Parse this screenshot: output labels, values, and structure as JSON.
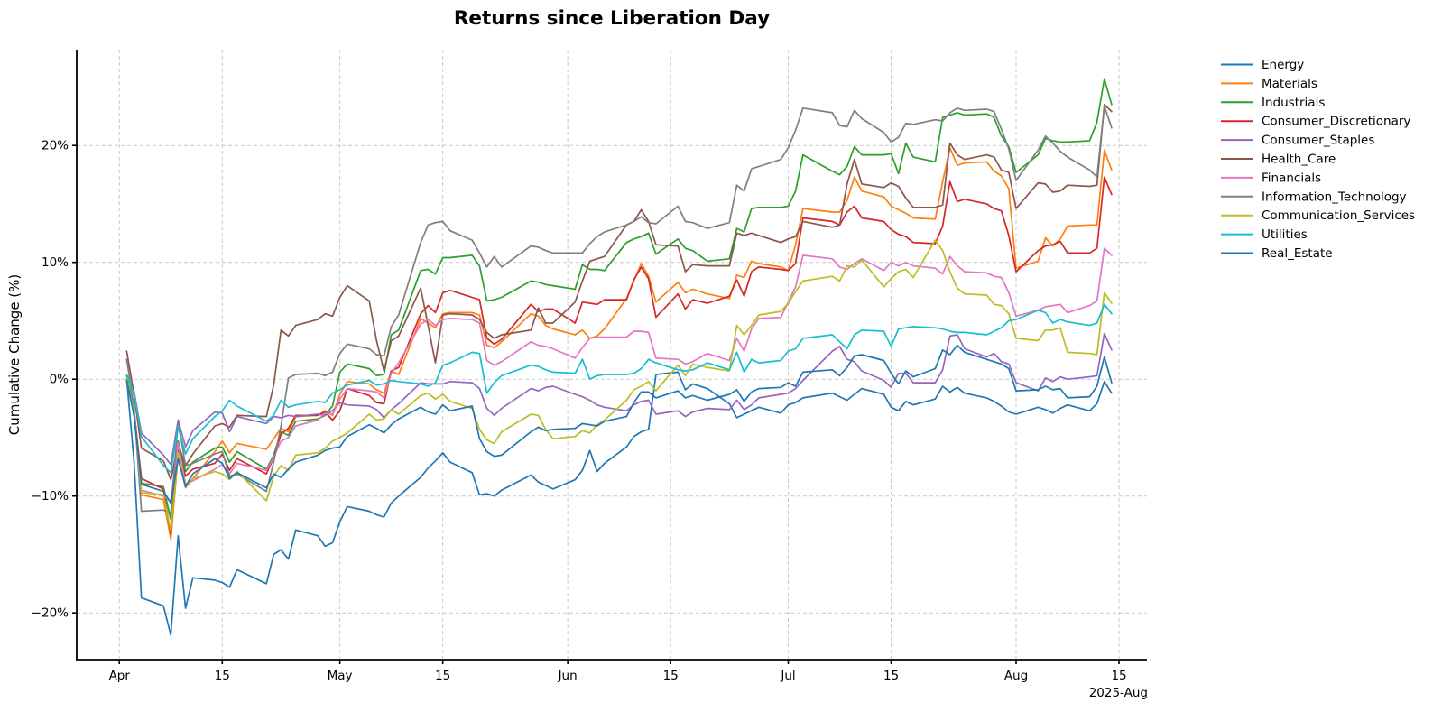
{
  "chart_data": {
    "type": "line",
    "title": "Returns since Liberation Day",
    "ylabel": "Cumulative Change (%)",
    "grid": true,
    "legend_position": "right-outside",
    "grid_color": "#c9c9c9",
    "x_axis": {
      "tick_labels": [
        "Apr",
        "15",
        "May",
        "15",
        "Jun",
        "15",
        "Jul",
        "15",
        "Aug",
        "15"
      ],
      "tick_days": [
        0,
        14,
        30,
        44,
        61,
        75,
        91,
        105,
        122,
        136
      ],
      "offset_label": "2025-Aug",
      "range_days": [
        -5.8,
        139.8
      ]
    },
    "y_axis": {
      "tick_values": [
        -20,
        -10,
        0,
        10,
        20
      ],
      "tick_labels": [
        "−20%",
        "−10%",
        "0%",
        "10%",
        "20%"
      ],
      "range": [
        -24.0,
        28.2
      ]
    },
    "x_days": [
      1,
      2,
      3,
      6,
      7,
      8,
      9,
      10,
      13,
      14,
      15,
      16,
      20,
      21,
      22,
      23,
      24,
      27,
      28,
      29,
      30,
      31,
      34,
      35,
      36,
      37,
      38,
      41,
      42,
      43,
      44,
      45,
      48,
      49,
      50,
      51,
      52,
      56,
      57,
      58,
      59,
      62,
      63,
      64,
      65,
      66,
      69,
      70,
      71,
      72,
      73,
      76,
      77,
      78,
      80,
      83,
      84,
      85,
      86,
      87,
      90,
      91,
      92,
      93,
      97,
      98,
      99,
      100,
      101,
      104,
      105,
      106,
      107,
      108,
      111,
      112,
      113,
      114,
      115,
      118,
      119,
      120,
      121,
      122,
      125,
      126,
      127,
      128,
      129,
      132,
      133,
      134,
      135
    ],
    "series": [
      {
        "name": "Energy",
        "color": "#1f77b4",
        "values": [
          0.0,
          -7.0,
          -18.7,
          -19.4,
          -21.9,
          -13.4,
          -19.6,
          -17.0,
          -17.2,
          -17.4,
          -17.8,
          -16.3,
          -17.5,
          -15.0,
          -14.6,
          -15.4,
          -12.9,
          -13.4,
          -14.3,
          -14.0,
          -12.2,
          -10.9,
          -11.3,
          -11.6,
          -11.8,
          -10.6,
          -10.0,
          -8.4,
          -7.6,
          -7.0,
          -6.3,
          -7.1,
          -8.0,
          -9.9,
          -9.8,
          -10.0,
          -9.5,
          -8.2,
          -8.8,
          -9.1,
          -9.4,
          -8.6,
          -7.8,
          -6.1,
          -7.9,
          -7.2,
          -5.8,
          -4.9,
          -4.5,
          -4.3,
          0.4,
          0.6,
          -0.9,
          -0.4,
          -0.8,
          -2.1,
          -3.3,
          -3.0,
          -2.7,
          -2.4,
          -2.9,
          -2.2,
          -2.0,
          -1.6,
          -1.2,
          -1.5,
          -1.8,
          -1.3,
          -0.8,
          -1.3,
          -2.4,
          -2.7,
          -1.9,
          -2.2,
          -1.7,
          -0.6,
          -1.1,
          -0.7,
          -1.2,
          -1.6,
          -1.9,
          -2.3,
          -2.8,
          -3.0,
          -2.4,
          -2.6,
          -2.9,
          -2.5,
          -2.2,
          -2.7,
          -2.1,
          -0.2,
          -1.2
        ]
      },
      {
        "name": "Materials",
        "color": "#ff7f0e",
        "values": [
          -0.1,
          -2.9,
          -9.9,
          -10.3,
          -13.7,
          -6.5,
          -9.3,
          -8.5,
          -6.2,
          -5.3,
          -6.3,
          -5.5,
          -6.0,
          -5.1,
          -4.2,
          -4.5,
          -3.2,
          -3.1,
          -2.7,
          -3.1,
          -1.3,
          -0.2,
          -0.4,
          -0.9,
          -1.2,
          0.7,
          0.4,
          5.2,
          4.8,
          4.4,
          5.6,
          5.7,
          5.7,
          5.5,
          2.9,
          2.7,
          3.2,
          5.6,
          5.4,
          4.6,
          4.3,
          3.8,
          4.2,
          3.5,
          3.7,
          4.3,
          6.9,
          8.4,
          9.9,
          8.8,
          6.6,
          8.3,
          7.4,
          7.7,
          7.3,
          6.9,
          8.9,
          8.7,
          10.1,
          9.9,
          9.6,
          9.3,
          11.5,
          14.6,
          14.3,
          14.3,
          15.3,
          17.3,
          16.1,
          15.6,
          14.8,
          14.5,
          14.2,
          13.8,
          13.7,
          16.9,
          19.8,
          18.3,
          18.5,
          18.6,
          17.8,
          17.4,
          16.3,
          9.5,
          10.1,
          12.1,
          11.4,
          12.0,
          13.1,
          13.2,
          13.2,
          19.6,
          17.9
        ]
      },
      {
        "name": "Industrials",
        "color": "#2ca02c",
        "values": [
          0.3,
          -2.6,
          -8.9,
          -9.2,
          -12.0,
          -5.3,
          -7.9,
          -7.1,
          -5.9,
          -5.8,
          -7.1,
          -6.2,
          -7.7,
          -6.5,
          -4.5,
          -4.8,
          -3.6,
          -3.4,
          -3.1,
          -2.3,
          0.6,
          1.3,
          0.9,
          0.3,
          0.4,
          3.8,
          4.2,
          9.3,
          9.4,
          9.0,
          10.4,
          10.4,
          10.6,
          9.7,
          6.7,
          6.8,
          7.0,
          8.4,
          8.3,
          8.1,
          8.0,
          7.7,
          9.8,
          9.4,
          9.4,
          9.3,
          11.7,
          12.0,
          12.2,
          12.5,
          10.7,
          12.0,
          11.2,
          11.0,
          10.1,
          10.3,
          12.9,
          12.6,
          14.6,
          14.7,
          14.7,
          14.8,
          16.1,
          19.2,
          17.8,
          17.5,
          18.2,
          19.9,
          19.2,
          19.2,
          19.3,
          17.6,
          20.2,
          19.0,
          18.6,
          22.4,
          22.6,
          22.8,
          22.6,
          22.7,
          22.4,
          20.8,
          19.9,
          17.7,
          19.2,
          20.6,
          20.4,
          20.3,
          20.3,
          20.4,
          22.0,
          25.7,
          23.5
        ]
      },
      {
        "name": "Consumer_Discretionary",
        "color": "#d62728",
        "values": [
          -0.2,
          -2.7,
          -8.5,
          -9.4,
          -13.3,
          -5.9,
          -8.3,
          -7.7,
          -7.2,
          -6.4,
          -7.8,
          -6.8,
          -8.1,
          -6.7,
          -4.7,
          -4.2,
          -3.1,
          -3.1,
          -2.8,
          -3.5,
          -2.7,
          -0.8,
          -1.4,
          -2.0,
          -2.1,
          0.7,
          1.0,
          5.6,
          6.3,
          5.7,
          7.4,
          7.6,
          7.0,
          6.8,
          3.5,
          3.0,
          3.4,
          6.4,
          5.8,
          6.0,
          6.0,
          4.8,
          6.6,
          6.5,
          6.4,
          6.8,
          6.8,
          8.5,
          9.6,
          8.6,
          5.3,
          7.3,
          6.0,
          6.8,
          6.5,
          7.1,
          8.5,
          7.1,
          9.2,
          9.6,
          9.4,
          9.3,
          9.9,
          13.8,
          13.5,
          13.2,
          14.3,
          14.8,
          13.8,
          13.5,
          12.8,
          12.4,
          12.2,
          11.7,
          11.6,
          13.1,
          16.9,
          15.2,
          15.4,
          15.0,
          14.6,
          14.4,
          12.3,
          9.2,
          11.0,
          11.4,
          11.5,
          11.8,
          10.8,
          10.8,
          11.2,
          17.3,
          15.8
        ]
      },
      {
        "name": "Consumer_Staples",
        "color": "#9467bd",
        "values": [
          0.3,
          -1.0,
          -4.6,
          -6.5,
          -7.3,
          -3.5,
          -5.8,
          -4.4,
          -2.8,
          -2.9,
          -4.5,
          -3.2,
          -3.8,
          -3.2,
          -3.3,
          -3.1,
          -3.2,
          -3.0,
          -3.1,
          -2.7,
          -2.0,
          -2.2,
          -2.3,
          -2.6,
          -3.3,
          -2.6,
          -2.1,
          -0.3,
          -0.4,
          -0.4,
          -0.4,
          -0.2,
          -0.3,
          -0.8,
          -2.5,
          -3.1,
          -2.5,
          -0.8,
          -1.0,
          -0.7,
          -0.6,
          -1.3,
          -1.5,
          -1.8,
          -2.2,
          -2.4,
          -2.7,
          -2.2,
          -1.9,
          -1.8,
          -3.0,
          -2.7,
          -3.2,
          -2.8,
          -2.5,
          -2.6,
          -1.8,
          -2.6,
          -2.2,
          -1.6,
          -1.3,
          -1.2,
          -0.8,
          -0.1,
          2.4,
          2.8,
          1.7,
          1.5,
          0.7,
          -0.1,
          -0.7,
          0.5,
          0.5,
          -0.3,
          -0.3,
          0.8,
          3.7,
          3.8,
          2.6,
          1.9,
          2.2,
          1.5,
          1.3,
          -0.3,
          -1.0,
          0.1,
          -0.2,
          0.2,
          0.0,
          0.2,
          0.3,
          3.9,
          2.5
        ]
      },
      {
        "name": "Health_Care",
        "color": "#8c564b",
        "values": [
          2.4,
          -1.3,
          -5.9,
          -7.0,
          -8.6,
          -5.6,
          -7.4,
          -6.4,
          -4.0,
          -3.8,
          -4.1,
          -3.1,
          -3.2,
          -0.5,
          4.2,
          3.7,
          4.6,
          5.1,
          5.6,
          5.4,
          7.0,
          8.0,
          6.7,
          3.3,
          0.7,
          3.3,
          3.7,
          7.8,
          4.6,
          1.4,
          5.5,
          5.6,
          5.5,
          5.1,
          4.0,
          3.5,
          3.8,
          4.2,
          6.1,
          4.8,
          4.8,
          6.6,
          8.4,
          10.1,
          10.3,
          10.5,
          13.2,
          13.5,
          14.5,
          13.5,
          11.5,
          11.4,
          9.2,
          9.8,
          9.7,
          9.7,
          12.5,
          12.3,
          12.5,
          12.3,
          11.7,
          12.0,
          12.2,
          13.5,
          13.0,
          13.2,
          16.7,
          18.8,
          16.7,
          16.4,
          16.8,
          16.5,
          15.5,
          14.7,
          14.7,
          14.9,
          20.2,
          19.2,
          18.8,
          19.2,
          19.0,
          17.9,
          17.7,
          14.6,
          16.8,
          16.7,
          16.0,
          16.1,
          16.6,
          16.5,
          16.6,
          23.5,
          22.9
        ]
      },
      {
        "name": "Financials",
        "color": "#e377c2",
        "values": [
          -0.2,
          -2.9,
          -9.5,
          -10.0,
          -10.4,
          -5.5,
          -9.0,
          -8.7,
          -7.7,
          -7.3,
          -8.1,
          -7.2,
          -7.8,
          -6.7,
          -5.3,
          -5.0,
          -4.0,
          -3.5,
          -2.9,
          -3.0,
          -1.7,
          -0.8,
          -1.0,
          -1.1,
          -1.6,
          0.5,
          1.4,
          4.7,
          5.1,
          4.6,
          5.1,
          5.2,
          5.1,
          4.8,
          1.6,
          1.2,
          1.5,
          3.2,
          2.9,
          2.8,
          2.6,
          1.8,
          2.7,
          3.5,
          3.6,
          3.6,
          3.6,
          4.1,
          4.1,
          4.0,
          1.8,
          1.7,
          1.3,
          1.5,
          2.2,
          1.6,
          3.5,
          2.4,
          4.3,
          5.2,
          5.3,
          6.6,
          7.9,
          10.6,
          10.3,
          9.6,
          9.4,
          9.9,
          10.3,
          9.3,
          10.0,
          9.7,
          10.0,
          9.7,
          9.5,
          9.0,
          10.5,
          9.7,
          9.2,
          9.1,
          8.8,
          8.7,
          7.4,
          5.4,
          5.9,
          6.2,
          6.3,
          6.4,
          5.7,
          6.3,
          6.7,
          11.2,
          10.6
        ]
      },
      {
        "name": "Information_Technology",
        "color": "#7f7f7f",
        "values": [
          1.7,
          -2.4,
          -11.3,
          -11.2,
          -11.5,
          -3.6,
          -7.4,
          -7.2,
          -6.4,
          -6.2,
          -8.3,
          -8.1,
          -9.6,
          -7.1,
          -4.0,
          0.1,
          0.4,
          0.5,
          0.3,
          0.6,
          2.2,
          3.0,
          2.6,
          2.1,
          2.0,
          4.5,
          5.5,
          11.7,
          13.2,
          13.4,
          13.5,
          12.7,
          11.9,
          10.8,
          9.6,
          10.5,
          9.6,
          11.4,
          11.3,
          11.0,
          10.8,
          10.8,
          10.8,
          11.6,
          12.2,
          12.6,
          13.2,
          13.5,
          13.9,
          13.4,
          13.3,
          14.8,
          13.5,
          13.4,
          12.9,
          13.4,
          16.6,
          16.1,
          18.0,
          18.2,
          18.8,
          19.8,
          21.3,
          23.2,
          22.8,
          21.7,
          21.6,
          23.0,
          22.3,
          21.1,
          20.3,
          20.7,
          21.9,
          21.8,
          22.2,
          22.1,
          22.8,
          23.2,
          23.0,
          23.1,
          22.9,
          21.4,
          19.7,
          17.0,
          19.6,
          20.8,
          20.2,
          19.5,
          19.0,
          17.9,
          17.3,
          23.4,
          21.5
        ]
      },
      {
        "name": "Communication_Services",
        "color": "#bcbd22",
        "values": [
          0.1,
          -2.8,
          -9.7,
          -9.9,
          -13.0,
          -6.3,
          -9.2,
          -8.5,
          -7.9,
          -8.1,
          -8.6,
          -7.9,
          -10.4,
          -8.3,
          -7.4,
          -7.8,
          -6.5,
          -6.3,
          -5.9,
          -5.3,
          -5.0,
          -4.6,
          -3.0,
          -3.5,
          -3.4,
          -2.6,
          -3.0,
          -1.4,
          -1.2,
          -1.7,
          -1.3,
          -1.9,
          -2.5,
          -4.3,
          -5.2,
          -5.5,
          -4.5,
          -3.0,
          -3.1,
          -4.3,
          -5.1,
          -4.9,
          -4.4,
          -4.6,
          -3.9,
          -3.5,
          -1.8,
          -0.9,
          -0.6,
          -0.2,
          -1.0,
          1.2,
          0.3,
          1.3,
          1.0,
          0.7,
          4.6,
          3.8,
          4.6,
          5.5,
          5.8,
          6.5,
          7.5,
          8.4,
          8.8,
          8.4,
          9.7,
          9.6,
          10.2,
          7.9,
          8.6,
          9.2,
          9.4,
          8.7,
          11.9,
          11.0,
          9.2,
          7.8,
          7.3,
          7.2,
          6.4,
          6.3,
          5.6,
          3.5,
          3.3,
          4.2,
          4.2,
          4.4,
          2.3,
          2.2,
          2.1,
          7.4,
          6.5
        ]
      },
      {
        "name": "Utilities",
        "color": "#17becf",
        "values": [
          0.4,
          -1.2,
          -4.9,
          -7.4,
          -8.0,
          -4.1,
          -6.4,
          -5.1,
          -3.2,
          -2.7,
          -1.8,
          -2.3,
          -3.6,
          -3.1,
          -1.8,
          -2.4,
          -2.2,
          -1.9,
          -2.0,
          -1.2,
          -0.9,
          -0.5,
          -0.1,
          -0.5,
          -0.4,
          -0.1,
          -0.2,
          -0.4,
          -0.6,
          -0.3,
          1.2,
          1.4,
          2.3,
          2.2,
          -1.2,
          -0.3,
          0.3,
          1.2,
          1.1,
          0.8,
          0.6,
          0.5,
          1.7,
          0.0,
          0.3,
          0.4,
          0.4,
          0.5,
          0.9,
          1.7,
          1.4,
          0.8,
          0.7,
          0.8,
          1.4,
          0.8,
          2.3,
          0.6,
          1.7,
          1.4,
          1.6,
          2.4,
          2.6,
          3.5,
          3.8,
          3.2,
          2.6,
          3.8,
          4.2,
          4.1,
          2.8,
          4.3,
          4.4,
          4.5,
          4.4,
          4.3,
          4.1,
          4.0,
          4.0,
          3.8,
          4.1,
          4.4,
          5.0,
          5.1,
          5.9,
          5.7,
          4.8,
          5.1,
          4.9,
          4.6,
          4.8,
          6.4,
          5.6
        ]
      },
      {
        "name": "Real_Estate",
        "color": "#1f77b4",
        "values": [
          -0.1,
          -3.1,
          -9.0,
          -9.6,
          -10.6,
          -6.8,
          -9.2,
          -8.1,
          -6.8,
          -7.2,
          -8.5,
          -8.0,
          -9.3,
          -8.1,
          -8.4,
          -7.7,
          -7.1,
          -6.5,
          -6.1,
          -5.9,
          -5.8,
          -4.9,
          -3.9,
          -4.2,
          -4.6,
          -3.9,
          -3.4,
          -2.4,
          -2.8,
          -3.0,
          -2.2,
          -2.7,
          -2.3,
          -5.1,
          -6.2,
          -6.6,
          -6.5,
          -4.5,
          -4.1,
          -4.4,
          -4.3,
          -4.2,
          -3.8,
          -3.9,
          -4.0,
          -3.6,
          -3.2,
          -2.0,
          -1.1,
          -1.1,
          -1.6,
          -1.0,
          -1.6,
          -1.4,
          -1.8,
          -1.3,
          -0.9,
          -1.9,
          -1.1,
          -0.8,
          -0.7,
          -0.3,
          -0.6,
          0.6,
          0.8,
          0.3,
          1.0,
          2.0,
          2.1,
          1.6,
          0.5,
          -0.4,
          0.7,
          0.2,
          0.9,
          2.5,
          2.1,
          2.9,
          2.3,
          1.7,
          1.5,
          1.3,
          0.9,
          -1.0,
          -0.9,
          -0.6,
          -0.9,
          -0.8,
          -1.6,
          -1.5,
          -0.6,
          1.9,
          -0.3
        ]
      }
    ]
  }
}
